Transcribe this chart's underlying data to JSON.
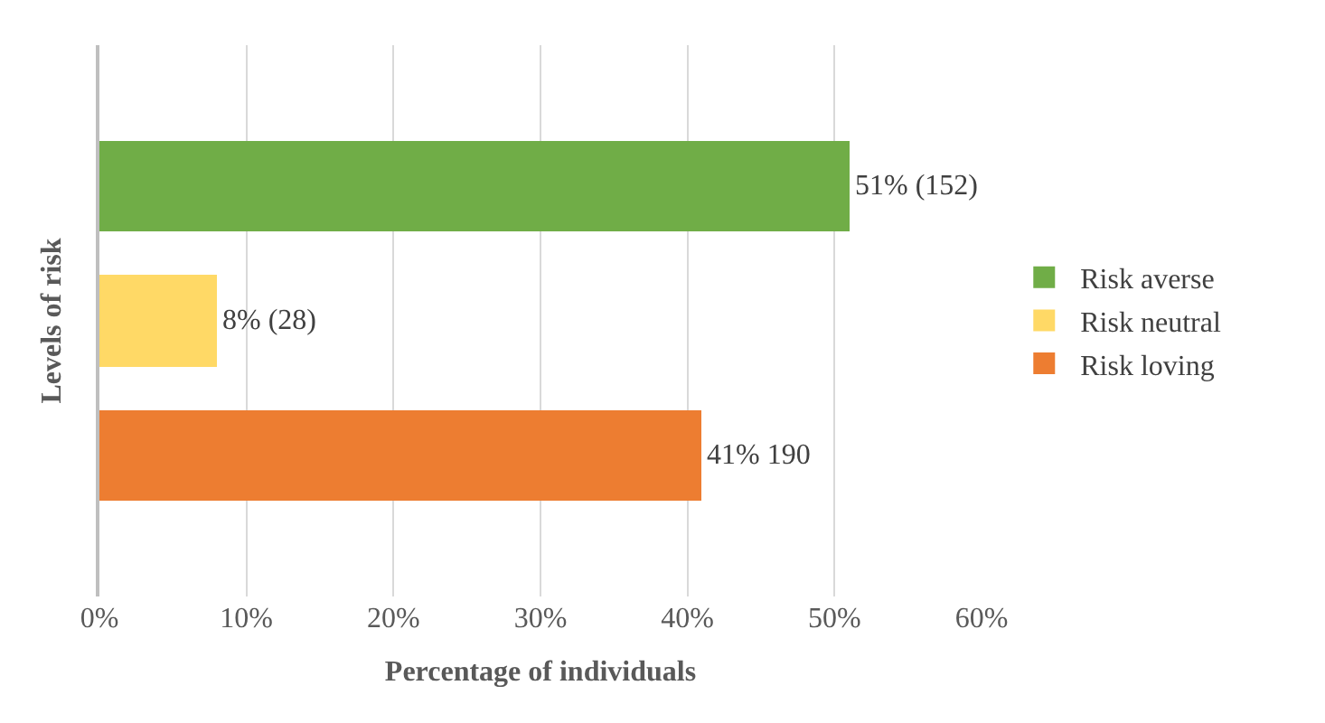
{
  "chart_data": {
    "type": "bar",
    "orientation": "horizontal",
    "xlabel": "Percentage of individuals",
    "ylabel": "Levels of risk",
    "categories": [
      null,
      null,
      null
    ],
    "series": [
      {
        "name": "Risk averse",
        "color": "#70ad47",
        "values": [
          51,
          null,
          null
        ],
        "value_labels": [
          "51% (152)",
          null,
          null
        ]
      },
      {
        "name": "Risk neutral",
        "color": "#ffd966",
        "values": [
          null,
          8,
          null
        ],
        "value_labels": [
          null,
          "8% (28)",
          null
        ]
      },
      {
        "name": "Risk loving",
        "color": "#ed7d31",
        "values": [
          null,
          null,
          41
        ],
        "value_labels": [
          null,
          null,
          "41% 190"
        ]
      }
    ],
    "xlim": [
      0,
      60
    ],
    "xticks": [
      {
        "value": 0,
        "label": "0%"
      },
      {
        "value": 10,
        "label": "10%"
      },
      {
        "value": 20,
        "label": "20%"
      },
      {
        "value": 30,
        "label": "30%"
      },
      {
        "value": 40,
        "label": "40%"
      },
      {
        "value": 50,
        "label": "50%"
      },
      {
        "value": 60,
        "label": "60%"
      }
    ],
    "grid": "x",
    "legend": "right",
    "tick_labels": "x"
  }
}
